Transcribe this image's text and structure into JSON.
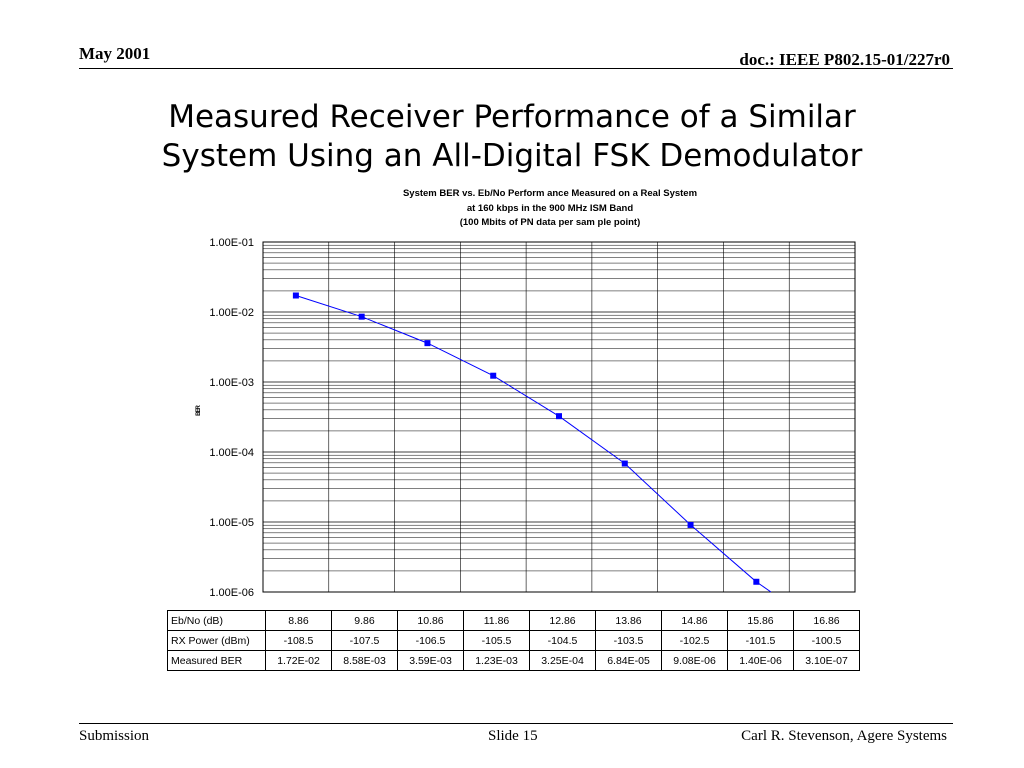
{
  "header": {
    "date": "May 2001",
    "doc_id": "doc.: IEEE P802.15-01/227r0"
  },
  "slide": {
    "title_line1": "Measured Receiver Performance of a Similar",
    "title_line2": "System Using an All-Digital FSK Demodulator"
  },
  "footer": {
    "left": "Submission",
    "center": "Slide 15",
    "right": "Carl R. Stevenson, Agere Systems"
  },
  "chart_data": {
    "type": "line",
    "title_lines": [
      "System  BER vs. Eb/No Perform ance Measured on a Real System",
      "at 160 kbps in the 900 MHz ISM Band",
      "(100 Mbits of PN data per sam ple point)"
    ],
    "ylabel": "BER",
    "yscale": "log",
    "ylim": [
      1e-06,
      0.1
    ],
    "y_tick_labels": [
      "1.00E-01",
      "1.00E-02",
      "1.00E-03",
      "1.00E-04",
      "1.00E-05",
      "1.00E-06"
    ],
    "grid": true,
    "legend": "none",
    "series_color": "#0000ff",
    "table_rows": [
      {
        "label": "Eb/No (dB)",
        "values": [
          "8.86",
          "9.86",
          "10.86",
          "11.86",
          "12.86",
          "13.86",
          "14.86",
          "15.86",
          "16.86"
        ]
      },
      {
        "label": "RX Power (dBm)",
        "values": [
          "-108.5",
          "-107.5",
          "-106.5",
          "-105.5",
          "-104.5",
          "-103.5",
          "-102.5",
          "-101.5",
          "-100.5"
        ]
      },
      {
        "label": "Measured BER",
        "values": [
          "1.72E-02",
          "8.58E-03",
          "3.59E-03",
          "1.23E-03",
          "3.25E-04",
          "6.84E-05",
          "9.08E-06",
          "1.40E-06",
          "3.10E-07"
        ]
      }
    ],
    "x": [
      8.86,
      9.86,
      10.86,
      11.86,
      12.86,
      13.86,
      14.86,
      15.86,
      16.86
    ],
    "series": [
      {
        "values": [
          0.0172,
          0.00858,
          0.00359,
          0.00123,
          0.000325,
          6.84e-05,
          9.08e-06,
          1.4e-06,
          3.1e-07
        ]
      }
    ]
  }
}
